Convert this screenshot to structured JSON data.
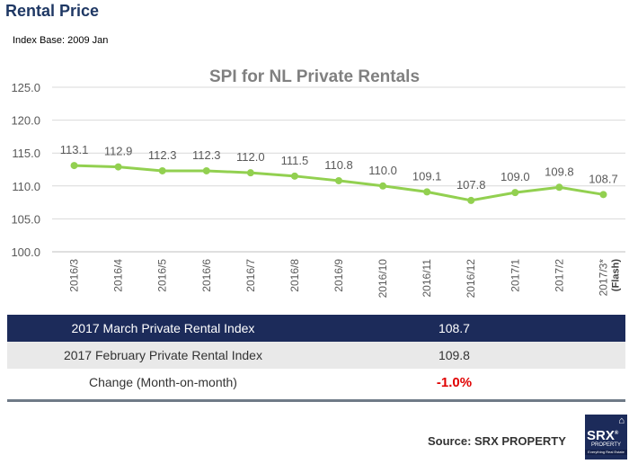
{
  "header": {
    "title": "Rental Price",
    "index_base": "Index Base: 2009 Jan"
  },
  "chart_data": {
    "type": "line",
    "title": "SPI for NL Private Rentals",
    "xlabel": "",
    "ylabel": "",
    "categories": [
      "2016/3",
      "2016/4",
      "2016/5",
      "2016/6",
      "2016/7",
      "2016/8",
      "2016/9",
      "2016/10",
      "2016/11",
      "2016/12",
      "2017/1",
      "2017/2",
      "2017/3*"
    ],
    "category_note": "(Flash)",
    "series": [
      {
        "values": [
          113.1,
          112.9,
          112.3,
          112.3,
          112.0,
          111.5,
          110.8,
          110.0,
          109.1,
          107.8,
          109.0,
          109.8,
          108.7
        ]
      }
    ],
    "data_labels": [
      "113.1",
      "112.9",
      "112.3",
      "112.3",
      "112.0",
      "111.5",
      "110.8",
      "110.0",
      "109.1",
      "107.8",
      "109.0",
      "109.8",
      "108.7"
    ],
    "ylim": [
      100,
      125
    ],
    "yticks": [
      100,
      105,
      110,
      115,
      120,
      125
    ],
    "ytick_labels": [
      "100.0",
      "105.0",
      "110.0",
      "115.0",
      "120.0",
      "125.0"
    ],
    "grid": true,
    "legend": "none",
    "line_color": "#92d050",
    "title_color": "#808080"
  },
  "summary_table": {
    "rows": [
      {
        "label": "2017 March Private Rental Index",
        "value": "108.7"
      },
      {
        "label": "2017 February Private Rental Index",
        "value": "109.8"
      },
      {
        "label": "Change (Month-on-month)",
        "value": "-1.0%"
      }
    ],
    "highlight_color": "#1c2b5a",
    "negative_color": "#e00000"
  },
  "footer": {
    "source": "Source:  SRX PROPERTY",
    "logo": {
      "icon": "home-icon",
      "brand": "SRX",
      "trademark": "®",
      "subtitle": "PROPERTY",
      "tagline": "Everything Real Estate"
    }
  }
}
